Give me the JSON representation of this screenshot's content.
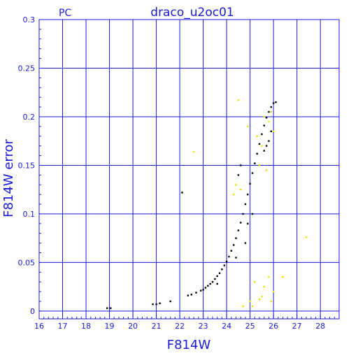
{
  "chart_data": {
    "type": "scatter",
    "title": "draco_u2oc01",
    "corner_label": "PC",
    "xlabel": "F814W",
    "ylabel": "F814W error",
    "xlim": [
      16,
      28.8
    ],
    "ylim": [
      -0.008,
      0.3
    ],
    "grid": true,
    "x_ticks": [
      "16",
      "17",
      "18",
      "19",
      "20",
      "21",
      "22",
      "23",
      "24",
      "25",
      "26",
      "27",
      "28"
    ],
    "y_ticks": [
      "0",
      "0.05",
      "0.1",
      "0.15",
      "0.2",
      "0.25",
      "0.3"
    ],
    "colors": {
      "axes": "#1a1ad8",
      "grid": "#1a1ad8",
      "black_points": "#000000",
      "yellow_points": "#f0e000"
    },
    "series": [
      {
        "color": "black",
        "points": [
          [
            18.9,
            0.003
          ],
          [
            19.05,
            0.003
          ],
          [
            20.85,
            0.007
          ],
          [
            21.0,
            0.007
          ],
          [
            21.15,
            0.008
          ],
          [
            21.6,
            0.01
          ],
          [
            22.1,
            0.122
          ],
          [
            22.35,
            0.016
          ],
          [
            22.5,
            0.017
          ],
          [
            22.7,
            0.019
          ],
          [
            22.9,
            0.021
          ],
          [
            23.0,
            0.022
          ],
          [
            23.1,
            0.024
          ],
          [
            23.2,
            0.026
          ],
          [
            23.3,
            0.028
          ],
          [
            23.4,
            0.03
          ],
          [
            23.5,
            0.033
          ],
          [
            23.6,
            0.036
          ],
          [
            23.7,
            0.039
          ],
          [
            23.8,
            0.043
          ],
          [
            23.9,
            0.047
          ],
          [
            24.0,
            0.051
          ],
          [
            24.1,
            0.056
          ],
          [
            24.2,
            0.062
          ],
          [
            24.3,
            0.068
          ],
          [
            24.4,
            0.075
          ],
          [
            24.5,
            0.083
          ],
          [
            24.6,
            0.091
          ],
          [
            24.7,
            0.1
          ],
          [
            24.8,
            0.11
          ],
          [
            24.9,
            0.12
          ],
          [
            25.0,
            0.131
          ],
          [
            25.1,
            0.142
          ],
          [
            25.2,
            0.152
          ],
          [
            25.3,
            0.162
          ],
          [
            25.4,
            0.172
          ],
          [
            25.5,
            0.182
          ],
          [
            25.6,
            0.191
          ],
          [
            25.7,
            0.199
          ],
          [
            25.8,
            0.205
          ],
          [
            25.9,
            0.21
          ],
          [
            26.0,
            0.214
          ],
          [
            26.1,
            0.215
          ],
          [
            24.6,
            0.15
          ],
          [
            24.5,
            0.14
          ],
          [
            24.9,
            0.09
          ],
          [
            25.1,
            0.1
          ],
          [
            24.4,
            0.055
          ],
          [
            23.6,
            0.028
          ],
          [
            24.8,
            0.07
          ],
          [
            25.6,
            0.165
          ],
          [
            25.8,
            0.175
          ],
          [
            25.9,
            0.185
          ],
          [
            25.7,
            0.17
          ]
        ]
      },
      {
        "color": "yellow",
        "points": [
          [
            22.6,
            0.164
          ],
          [
            24.5,
            0.217
          ],
          [
            24.4,
            0.13
          ],
          [
            24.3,
            0.12
          ],
          [
            24.6,
            0.125
          ],
          [
            24.9,
            0.19
          ],
          [
            25.3,
            0.18
          ],
          [
            25.5,
            0.17
          ],
          [
            25.6,
            0.2
          ],
          [
            25.8,
            0.195
          ],
          [
            26.0,
            0.185
          ],
          [
            25.9,
            0.205
          ],
          [
            25.4,
            0.15
          ],
          [
            25.7,
            0.145
          ],
          [
            25.2,
            0.03
          ],
          [
            25.5,
            0.015
          ],
          [
            25.6,
            0.025
          ],
          [
            25.8,
            0.035
          ],
          [
            26.0,
            0.02
          ],
          [
            26.4,
            0.035
          ],
          [
            27.4,
            0.076
          ],
          [
            25.0,
            0.01
          ],
          [
            25.4,
            0.012
          ],
          [
            24.7,
            0.005
          ],
          [
            25.1,
            0.005
          ],
          [
            25.9,
            0.01
          ]
        ]
      }
    ]
  }
}
